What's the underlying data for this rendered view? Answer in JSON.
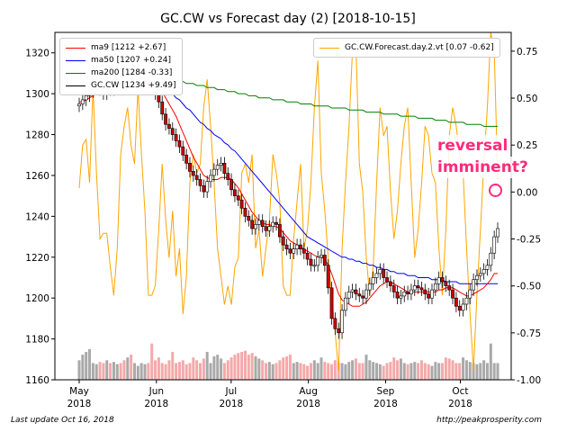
{
  "title": "GC.CW vs Forecast day (2)  [2018-10-15]",
  "footer": {
    "left": "Last update Oct 16, 2018",
    "right": "http://peakprosperity.com"
  },
  "annotation": {
    "line1": "reversal",
    "line2": "imminent?",
    "color": "#ff2a7a"
  },
  "chart_data": {
    "type": "line",
    "xlabel": "",
    "ylabel": "",
    "x_ticks": [
      {
        "line1": "May",
        "line2": "2018",
        "date": "2018-05-01"
      },
      {
        "line1": "Jun",
        "line2": "2018",
        "date": "2018-06-01"
      },
      {
        "line1": "Jul",
        "line2": "2018",
        "date": "2018-07-01"
      },
      {
        "line1": "Aug",
        "line2": "2018",
        "date": "2018-08-01"
      },
      {
        "line1": "Sep",
        "line2": "2018",
        "date": "2018-09-01"
      },
      {
        "line1": "Oct",
        "line2": "2018",
        "date": "2018-10-01"
      }
    ],
    "ylim_left": [
      1160,
      1330
    ],
    "left_ticks": [
      "1160",
      "1180",
      "1200",
      "1220",
      "1240",
      "1260",
      "1280",
      "1300",
      "1320"
    ],
    "ylim_right": [
      -1.0,
      0.85
    ],
    "right_ticks": [
      "-1.00",
      "-0.75",
      "-0.50",
      "-0.25",
      "0.00",
      "0.25",
      "0.50",
      "0.75"
    ],
    "legend_left": [
      {
        "label": "ma9 [1212 +2.67]",
        "color": "#ff0000"
      },
      {
        "label": "ma50 [1207 +0.24]",
        "color": "#0000ff"
      },
      {
        "label": "ma200 [1284 -0.33]",
        "color": "#008000"
      },
      {
        "label": "GC.CW [1234 +9.49]",
        "color": "#000000"
      }
    ],
    "legend_right": [
      {
        "label": "GC.CW.Forecast.day.2.vt [0.07 -0.62]",
        "color": "#ffa500"
      }
    ],
    "close": [
      1295,
      1297,
      1299,
      1301,
      1303,
      1304,
      1302,
      1300,
      1305,
      1302,
      1303,
      1306,
      1304,
      1303,
      1305,
      1303,
      1304,
      1305,
      1306,
      1308,
      1307,
      1303,
      1300,
      1296,
      1290,
      1285,
      1283,
      1280,
      1277,
      1274,
      1270,
      1266,
      1262,
      1260,
      1258,
      1255,
      1252,
      1257,
      1260,
      1263,
      1265,
      1266,
      1261,
      1258,
      1253,
      1250,
      1248,
      1244,
      1240,
      1238,
      1234,
      1236,
      1238,
      1235,
      1233,
      1235,
      1237,
      1236,
      1230,
      1226,
      1224,
      1222,
      1224,
      1226,
      1224,
      1222,
      1219,
      1216,
      1216,
      1220,
      1221,
      1216,
      1205,
      1190,
      1185,
      1183,
      1194,
      1200,
      1203,
      1204,
      1202,
      1201,
      1200,
      1204,
      1207,
      1210,
      1212,
      1214,
      1210,
      1208,
      1206,
      1203,
      1200,
      1201,
      1203,
      1202,
      1204,
      1206,
      1205,
      1204,
      1202,
      1200,
      1204,
      1207,
      1210,
      1208,
      1206,
      1204,
      1200,
      1196,
      1194,
      1197,
      1200,
      1204,
      1209,
      1211,
      1212,
      1214,
      1216,
      1222,
      1230,
      1234
    ],
    "ma9": [
      1296,
      1296,
      1297,
      1298,
      1299,
      1300,
      1301,
      1301,
      1301,
      1302,
      1302,
      1302,
      1303,
      1303,
      1303,
      1303,
      1303,
      1304,
      1304,
      1305,
      1305,
      1305,
      1304,
      1303,
      1301,
      1298,
      1295,
      1292,
      1289,
      1285,
      1281,
      1277,
      1273,
      1269,
      1266,
      1263,
      1260,
      1259,
      1258,
      1258,
      1258,
      1259,
      1259,
      1259,
      1258,
      1256,
      1254,
      1251,
      1248,
      1245,
      1242,
      1240,
      1238,
      1237,
      1236,
      1236,
      1235,
      1235,
      1234,
      1232,
      1230,
      1228,
      1227,
      1226,
      1225,
      1224,
      1223,
      1222,
      1221,
      1220,
      1220,
      1219,
      1216,
      1212,
      1207,
      1202,
      1199,
      1198,
      1197,
      1196,
      1196,
      1196,
      1197,
      1198,
      1200,
      1202,
      1204,
      1206,
      1207,
      1208,
      1208,
      1207,
      1206,
      1205,
      1204,
      1203,
      1203,
      1203,
      1203,
      1203,
      1203,
      1203,
      1203,
      1203,
      1204,
      1204,
      1205,
      1205,
      1205,
      1204,
      1203,
      1202,
      1201,
      1201,
      1202,
      1203,
      1204,
      1205,
      1207,
      1209,
      1212,
      1212
    ],
    "ma50": [
      1302,
      1302,
      1302,
      1303,
      1303,
      1304,
      1304,
      1305,
      1305,
      1305,
      1305,
      1306,
      1306,
      1306,
      1307,
      1307,
      1307,
      1307,
      1307,
      1307,
      1307,
      1306,
      1306,
      1305,
      1304,
      1303,
      1301,
      1300,
      1298,
      1297,
      1295,
      1293,
      1292,
      1290,
      1288,
      1286,
      1285,
      1283,
      1282,
      1280,
      1279,
      1278,
      1276,
      1275,
      1273,
      1272,
      1270,
      1268,
      1266,
      1264,
      1262,
      1260,
      1258,
      1256,
      1254,
      1252,
      1250,
      1248,
      1246,
      1244,
      1242,
      1240,
      1238,
      1236,
      1234,
      1232,
      1230,
      1229,
      1228,
      1227,
      1226,
      1225,
      1224,
      1223,
      1222,
      1221,
      1220,
      1220,
      1219,
      1219,
      1218,
      1218,
      1217,
      1217,
      1216,
      1216,
      1215,
      1215,
      1214,
      1214,
      1213,
      1213,
      1212,
      1212,
      1212,
      1211,
      1211,
      1211,
      1210,
      1210,
      1210,
      1210,
      1209,
      1209,
      1209,
      1209,
      1208,
      1208,
      1208,
      1208,
      1207,
      1207,
      1207,
      1207,
      1207,
      1207,
      1207,
      1207,
      1207,
      1207,
      1207,
      1207
    ],
    "ma200": [
      1313,
      1313,
      1313,
      1313,
      1313,
      1313,
      1312,
      1312,
      1312,
      1312,
      1311,
      1311,
      1311,
      1311,
      1310,
      1310,
      1310,
      1310,
      1309,
      1309,
      1309,
      1309,
      1308,
      1308,
      1308,
      1307,
      1307,
      1307,
      1306,
      1306,
      1306,
      1305,
      1305,
      1305,
      1304,
      1304,
      1304,
      1303,
      1303,
      1303,
      1302,
      1302,
      1302,
      1301,
      1301,
      1301,
      1300,
      1300,
      1300,
      1299,
      1299,
      1299,
      1298,
      1298,
      1298,
      1298,
      1297,
      1297,
      1297,
      1297,
      1296,
      1296,
      1296,
      1296,
      1295,
      1295,
      1295,
      1295,
      1294,
      1294,
      1294,
      1294,
      1294,
      1293,
      1293,
      1293,
      1293,
      1293,
      1292,
      1292,
      1292,
      1292,
      1292,
      1291,
      1291,
      1291,
      1291,
      1291,
      1290,
      1290,
      1290,
      1290,
      1290,
      1289,
      1289,
      1289,
      1289,
      1289,
      1288,
      1288,
      1288,
      1288,
      1288,
      1287,
      1287,
      1287,
      1287,
      1286,
      1286,
      1286,
      1286,
      1286,
      1285,
      1285,
      1285,
      1285,
      1285,
      1284,
      1284,
      1284,
      1284,
      1284
    ],
    "volume": [
      0.35,
      0.45,
      0.5,
      0.55,
      0.3,
      0.28,
      0.32,
      0.3,
      0.35,
      0.3,
      0.32,
      0.28,
      0.3,
      0.35,
      0.4,
      0.45,
      0.3,
      0.25,
      0.3,
      0.28,
      0.3,
      0.65,
      0.35,
      0.4,
      0.3,
      0.28,
      0.35,
      0.5,
      0.3,
      0.32,
      0.35,
      0.28,
      0.3,
      0.4,
      0.35,
      0.3,
      0.38,
      0.5,
      0.3,
      0.42,
      0.45,
      0.38,
      0.3,
      0.35,
      0.4,
      0.45,
      0.48,
      0.5,
      0.52,
      0.45,
      0.48,
      0.42,
      0.38,
      0.35,
      0.3,
      0.32,
      0.28,
      0.3,
      0.35,
      0.4,
      0.42,
      0.45,
      0.3,
      0.32,
      0.3,
      0.28,
      0.25,
      0.3,
      0.35,
      0.3,
      0.4,
      0.32,
      0.3,
      0.28,
      0.35,
      0.3,
      0.3,
      0.28,
      0.32,
      0.35,
      0.38,
      0.3,
      0.3,
      0.45,
      0.35,
      0.32,
      0.3,
      0.28,
      0.25,
      0.3,
      0.32,
      0.4,
      0.35,
      0.38,
      0.3,
      0.28,
      0.3,
      0.32,
      0.3,
      0.35,
      0.3,
      0.28,
      0.25,
      0.32,
      0.3,
      0.3,
      0.4,
      0.38,
      0.35,
      0.3,
      0.3,
      0.4,
      0.35,
      0.32,
      0.3,
      0.28,
      0.3,
      0.35,
      0.3,
      0.65,
      0.3,
      0.3
    ],
    "forecast": [
      0.02,
      0.25,
      0.28,
      0.05,
      0.55,
      0.1,
      -0.25,
      -0.22,
      -0.22,
      -0.4,
      -0.55,
      -0.3,
      0.2,
      0.35,
      0.45,
      0.25,
      0.15,
      0.55,
      0.2,
      -0.1,
      -0.55,
      -0.55,
      -0.5,
      -0.2,
      0.15,
      -0.15,
      -0.35,
      -0.1,
      -0.45,
      -0.3,
      -0.65,
      -0.45,
      0.05,
      0.2,
      0.1,
      0.15,
      0.45,
      0.6,
      0.35,
      0.05,
      -0.3,
      -0.45,
      -0.6,
      -0.5,
      -0.6,
      -0.4,
      -0.35,
      0.1,
      0.15,
      0.05,
      0.2,
      -0.3,
      -0.2,
      -0.45,
      -0.3,
      -0.15,
      0.2,
      0.1,
      -0.05,
      -0.5,
      -0.55,
      -0.55,
      -0.25,
      -0.05,
      0.15,
      -0.3,
      -0.2,
      0.05,
      0.45,
      0.7,
      0.1,
      -0.1,
      -0.35,
      -0.55,
      -0.75,
      -0.95,
      -0.3,
      0.05,
      0.35,
      0.75,
      0.8,
      0.15,
      0.0,
      -0.35,
      -0.55,
      -0.4,
      0.05,
      0.45,
      0.3,
      0.35,
      0.0,
      -0.25,
      -0.1,
      0.15,
      0.35,
      0.45,
      0.05,
      -0.35,
      -0.2,
      0.05,
      0.35,
      0.3,
      0.1,
      0.05,
      -0.3,
      -0.55,
      -0.2,
      0.3,
      0.45,
      0.35,
      0.2,
      0.1,
      -0.3,
      -0.65,
      -0.95,
      -0.55,
      -0.2,
      0.15,
      0.45,
      0.85,
      0.75,
      0.07
    ]
  }
}
